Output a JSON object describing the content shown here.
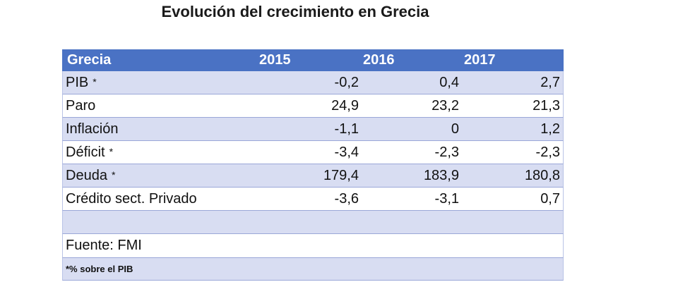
{
  "title": "Evolución del crecimiento en Grecia",
  "table": {
    "headers": [
      "Grecia",
      "2015",
      "2016",
      "2017"
    ],
    "rows": [
      {
        "label": "PIB",
        "star": "*",
        "values": [
          "-0,2",
          "0,4",
          "2,7"
        ]
      },
      {
        "label": "Paro",
        "star": "",
        "values": [
          "24,9",
          "23,2",
          "21,3"
        ]
      },
      {
        "label": "Inflación",
        "star": "",
        "values": [
          "-1,1",
          "0",
          "1,2"
        ]
      },
      {
        "label": "Déficit",
        "star": "*",
        "values": [
          "-3,4",
          "-2,3",
          "-2,3"
        ]
      },
      {
        "label": "Deuda",
        "star": "*",
        "values": [
          "179,4",
          "183,9",
          "180,8"
        ]
      },
      {
        "label": "Crédito sect. Privado",
        "star": "",
        "values": [
          "-3,6",
          "-3,1",
          "0,7"
        ]
      }
    ],
    "source": "Fuente: FMI",
    "footnote": "*% sobre el PIB"
  },
  "colors": {
    "header_bg": "#4a72c4",
    "shade_bg": "#d8ddf2",
    "plain_bg": "#ffffff"
  }
}
